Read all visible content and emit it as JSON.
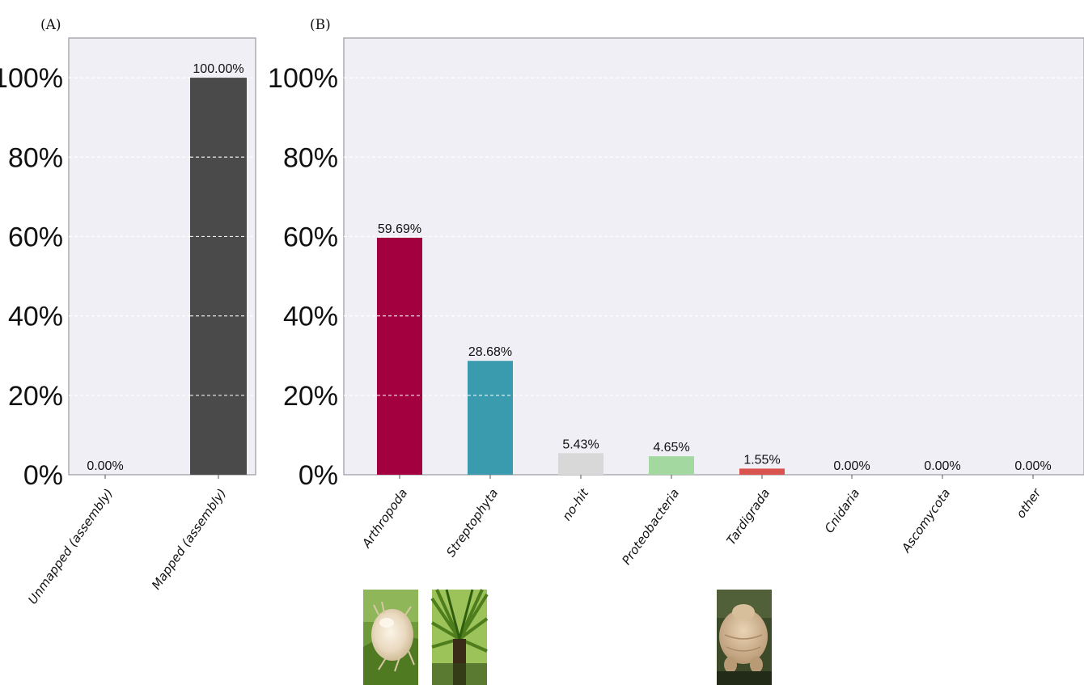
{
  "chart_data": [
    {
      "panel": "(A)",
      "type": "bar",
      "categories": [
        "Unmapped (assembly)",
        "Mapped (assembly)"
      ],
      "values": [
        0.0,
        100.0
      ],
      "value_labels": [
        "0.00%",
        "100.00%"
      ],
      "colors": [
        "#d6d6d6",
        "#4a4a4a"
      ],
      "ylim": [
        0,
        110
      ],
      "yticks": [
        0,
        20,
        40,
        60,
        80,
        100
      ],
      "ytick_labels": [
        "0%",
        "20%",
        "40%",
        "60%",
        "80%",
        "100%"
      ],
      "grid": true,
      "background": "#efeff5"
    },
    {
      "panel": "(B)",
      "type": "bar",
      "categories": [
        "Arthropoda",
        "Streptophyta",
        "no-hit",
        "Proteobacteria",
        "Tardigrada",
        "Cnidaria",
        "Ascomycota",
        "other"
      ],
      "values": [
        59.69,
        28.68,
        5.43,
        4.65,
        1.55,
        0.0,
        0.0,
        0.0
      ],
      "value_labels": [
        "59.69%",
        "28.68%",
        "5.43%",
        "4.65%",
        "1.55%",
        "0.00%",
        "0.00%",
        "0.00%"
      ],
      "colors": [
        "#a3003f",
        "#3b9bae",
        "#d8d8d8",
        "#a3d9a0",
        "#d9534f",
        "#8d6eac",
        "#f0a050",
        "#888888"
      ],
      "ylim": [
        0,
        110
      ],
      "yticks": [
        0,
        20,
        40,
        60,
        80,
        100
      ],
      "ytick_labels": [
        "0%",
        "20%",
        "40%",
        "60%",
        "80%",
        "100%"
      ],
      "grid": true,
      "background": "#efeff5",
      "thumbnails": [
        "mite-photo",
        "palm-photo",
        "tardigrade-photo"
      ]
    }
  ]
}
